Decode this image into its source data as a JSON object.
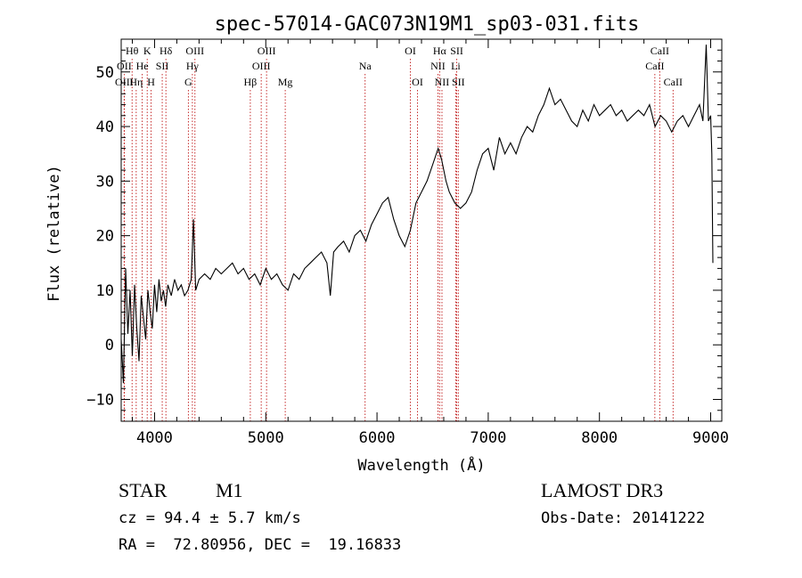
{
  "chart_data": {
    "type": "line",
    "title": "spec-57014-GAC073N19M1_sp03-031.fits",
    "xlabel": "Wavelength (Å)",
    "ylabel": "Flux (relative)",
    "xlim": [
      3700,
      9100
    ],
    "ylim": [
      -14,
      56
    ],
    "xticks": [
      4000,
      5000,
      6000,
      7000,
      8000,
      9000
    ],
    "xtick_labels": [
      "4000",
      "5000",
      "6000",
      "7000",
      "8000",
      "9000"
    ],
    "yticks": [
      -10,
      0,
      10,
      20,
      30,
      40,
      50
    ],
    "ytick_labels": [
      "−10",
      "0",
      "10",
      "20",
      "30",
      "40",
      "50"
    ],
    "series": [
      {
        "name": "flux",
        "color": "#000000",
        "points": [
          [
            3700,
            1
          ],
          [
            3720,
            -7
          ],
          [
            3740,
            14
          ],
          [
            3760,
            2
          ],
          [
            3780,
            10
          ],
          [
            3800,
            -2
          ],
          [
            3820,
            11
          ],
          [
            3840,
            3
          ],
          [
            3860,
            -3
          ],
          [
            3880,
            9
          ],
          [
            3900,
            5
          ],
          [
            3920,
            1
          ],
          [
            3940,
            10
          ],
          [
            3960,
            6
          ],
          [
            3980,
            3
          ],
          [
            4000,
            11
          ],
          [
            4020,
            6
          ],
          [
            4040,
            12
          ],
          [
            4060,
            8
          ],
          [
            4080,
            10
          ],
          [
            4100,
            7
          ],
          [
            4120,
            11
          ],
          [
            4150,
            9
          ],
          [
            4180,
            12
          ],
          [
            4210,
            10
          ],
          [
            4240,
            11
          ],
          [
            4270,
            9
          ],
          [
            4300,
            10
          ],
          [
            4330,
            12
          ],
          [
            4350,
            23
          ],
          [
            4370,
            10
          ],
          [
            4400,
            12
          ],
          [
            4450,
            13
          ],
          [
            4500,
            12
          ],
          [
            4550,
            14
          ],
          [
            4600,
            13
          ],
          [
            4650,
            14
          ],
          [
            4700,
            15
          ],
          [
            4750,
            13
          ],
          [
            4800,
            14
          ],
          [
            4850,
            12
          ],
          [
            4900,
            13
          ],
          [
            4950,
            11
          ],
          [
            5000,
            14
          ],
          [
            5050,
            12
          ],
          [
            5100,
            13
          ],
          [
            5150,
            11
          ],
          [
            5200,
            10
          ],
          [
            5250,
            13
          ],
          [
            5300,
            12
          ],
          [
            5350,
            14
          ],
          [
            5400,
            15
          ],
          [
            5450,
            16
          ],
          [
            5500,
            17
          ],
          [
            5550,
            15
          ],
          [
            5580,
            9
          ],
          [
            5610,
            17
          ],
          [
            5650,
            18
          ],
          [
            5700,
            19
          ],
          [
            5750,
            17
          ],
          [
            5800,
            20
          ],
          [
            5850,
            21
          ],
          [
            5900,
            19
          ],
          [
            5950,
            22
          ],
          [
            6000,
            24
          ],
          [
            6050,
            26
          ],
          [
            6100,
            27
          ],
          [
            6150,
            23
          ],
          [
            6200,
            20
          ],
          [
            6250,
            18
          ],
          [
            6300,
            21
          ],
          [
            6350,
            26
          ],
          [
            6400,
            28
          ],
          [
            6450,
            30
          ],
          [
            6500,
            33
          ],
          [
            6550,
            36
          ],
          [
            6580,
            34
          ],
          [
            6620,
            30
          ],
          [
            6650,
            28
          ],
          [
            6700,
            26
          ],
          [
            6750,
            25
          ],
          [
            6800,
            26
          ],
          [
            6850,
            28
          ],
          [
            6900,
            32
          ],
          [
            6950,
            35
          ],
          [
            7000,
            36
          ],
          [
            7050,
            32
          ],
          [
            7100,
            38
          ],
          [
            7150,
            35
          ],
          [
            7200,
            37
          ],
          [
            7250,
            35
          ],
          [
            7300,
            38
          ],
          [
            7350,
            40
          ],
          [
            7400,
            39
          ],
          [
            7450,
            42
          ],
          [
            7500,
            44
          ],
          [
            7550,
            47
          ],
          [
            7600,
            44
          ],
          [
            7650,
            45
          ],
          [
            7700,
            43
          ],
          [
            7750,
            41
          ],
          [
            7800,
            40
          ],
          [
            7850,
            43
          ],
          [
            7900,
            41
          ],
          [
            7950,
            44
          ],
          [
            8000,
            42
          ],
          [
            8050,
            43
          ],
          [
            8100,
            44
          ],
          [
            8150,
            42
          ],
          [
            8200,
            43
          ],
          [
            8250,
            41
          ],
          [
            8300,
            42
          ],
          [
            8350,
            43
          ],
          [
            8400,
            42
          ],
          [
            8450,
            44
          ],
          [
            8500,
            40
          ],
          [
            8550,
            42
          ],
          [
            8600,
            41
          ],
          [
            8650,
            39
          ],
          [
            8700,
            41
          ],
          [
            8750,
            42
          ],
          [
            8800,
            40
          ],
          [
            8850,
            42
          ],
          [
            8900,
            44
          ],
          [
            8930,
            41
          ],
          [
            8960,
            55
          ],
          [
            8980,
            41
          ],
          [
            9000,
            42
          ],
          [
            9010,
            35
          ],
          [
            9020,
            15
          ]
        ]
      }
    ],
    "line_markers": [
      {
        "label": "Hθ",
        "x": 3798,
        "row": 1
      },
      {
        "label": "OII",
        "x": 3727,
        "row": 2
      },
      {
        "label": "OIII",
        "x": 3727,
        "row": 3
      },
      {
        "label": "K",
        "x": 3934,
        "row": 1
      },
      {
        "label": "He",
        "x": 3889,
        "row": 2
      },
      {
        "label": "Hη",
        "x": 3835,
        "row": 3
      },
      {
        "label": "SII",
        "x": 4069,
        "row": 2
      },
      {
        "label": "H",
        "x": 3969,
        "row": 3
      },
      {
        "label": "Hδ",
        "x": 4102,
        "row": 1
      },
      {
        "label": "OIII",
        "x": 4363,
        "row": 1
      },
      {
        "label": "Hγ",
        "x": 4340,
        "row": 2
      },
      {
        "label": "G",
        "x": 4304,
        "row": 3
      },
      {
        "label": "OIII",
        "x": 5007,
        "row": 1
      },
      {
        "label": "OIII",
        "x": 4959,
        "row": 2
      },
      {
        "label": "Hβ",
        "x": 4861,
        "row": 3
      },
      {
        "label": "Mg",
        "x": 5175,
        "row": 3
      },
      {
        "label": "Na",
        "x": 5893,
        "row": 2
      },
      {
        "label": "OI",
        "x": 6300,
        "row": 1
      },
      {
        "label": "OI",
        "x": 6364,
        "row": 3
      },
      {
        "label": "Hα",
        "x": 6563,
        "row": 1
      },
      {
        "label": "SII",
        "x": 6717,
        "row": 1
      },
      {
        "label": "NII",
        "x": 6548,
        "row": 2
      },
      {
        "label": "Li",
        "x": 6708,
        "row": 2
      },
      {
        "label": "NII",
        "x": 6584,
        "row": 3
      },
      {
        "label": "SII",
        "x": 6731,
        "row": 3
      },
      {
        "label": "CaII",
        "x": 8542,
        "row": 1
      },
      {
        "label": "CaII",
        "x": 8498,
        "row": 2
      },
      {
        "label": "CaII",
        "x": 8662,
        "row": 3
      }
    ]
  },
  "info": {
    "class_label": "STAR",
    "subclass_label": "M1",
    "survey": "LAMOST DR3",
    "cz_line": "cz = 94.4 ± 5.7 km/s",
    "obs_date_line": "Obs-Date: 20141222",
    "coords_line": "RA =  72.80956, DEC =  19.16833"
  },
  "colors": {
    "axis": "#000000",
    "marker_line": "#c01818",
    "background": "#ffffff"
  }
}
